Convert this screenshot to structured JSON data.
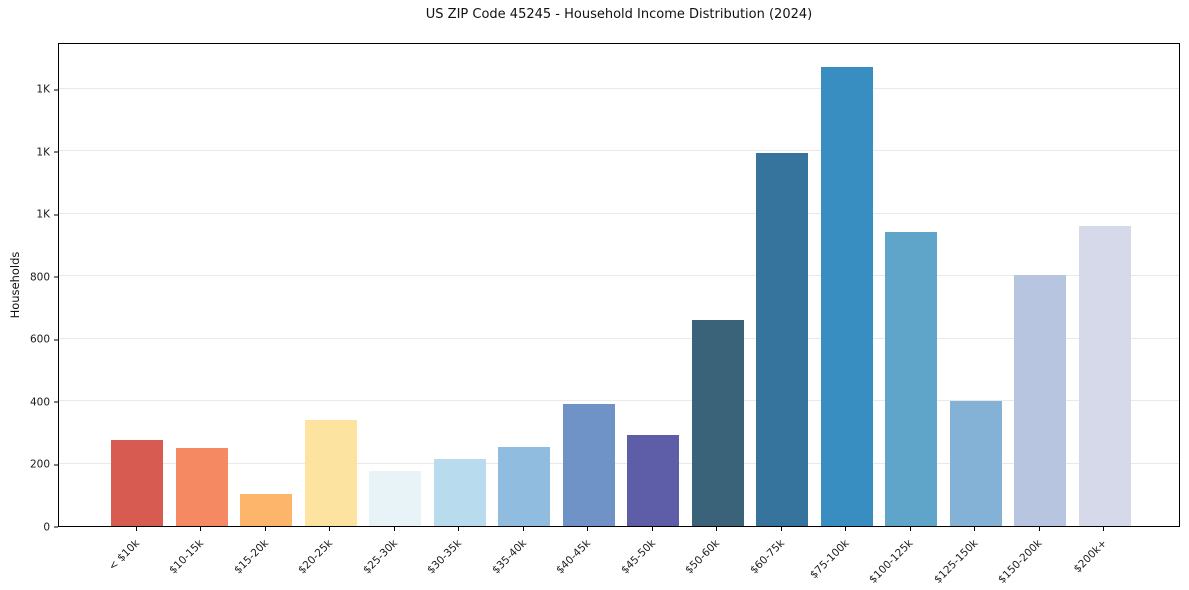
{
  "chart_data": {
    "type": "bar",
    "title": "US ZIP Code 45245 - Household Income Distribution (2024)",
    "xlabel": "",
    "ylabel": "Households",
    "categories": [
      "< $10k",
      "$10-15k",
      "$15-20k",
      "$20-25k",
      "$25-30k",
      "$30-35k",
      "$35-40k",
      "$40-45k",
      "$45-50k",
      "$50-60k",
      "$60-75k",
      "$75-100k",
      "$100-125k",
      "$125-150k",
      "$150-200k",
      "$200k+"
    ],
    "values": [
      277,
      250,
      104,
      339,
      176,
      215,
      252,
      390,
      291,
      659,
      1193,
      1470,
      942,
      400,
      805,
      960
    ],
    "bar_colors": [
      "#d85b52",
      "#f58a62",
      "#fcb56a",
      "#fce3a0",
      "#e8f3f7",
      "#b8dcee",
      "#90bcdf",
      "#6f93c6",
      "#5d5da8",
      "#3a6278",
      "#36749e",
      "#388ec1",
      "#5fa5c9",
      "#84b2d7",
      "#b7c5e0",
      "#d6d9e9"
    ],
    "ylim": [
      0,
      1550
    ],
    "ytick_values": [
      0,
      200,
      400,
      600,
      800,
      1000,
      1200,
      1400
    ],
    "ytick_labels": [
      "0",
      "200",
      "400",
      "600",
      "800",
      "1K",
      "1K",
      "1K"
    ],
    "grid": "horizontal-only",
    "legend_position": "none",
    "colors": {
      "background": "#ffffff",
      "gridline": "#e9e9ec",
      "spine": "#000000",
      "tick_text": "#1a1a1a",
      "title_text": "#111111"
    }
  }
}
